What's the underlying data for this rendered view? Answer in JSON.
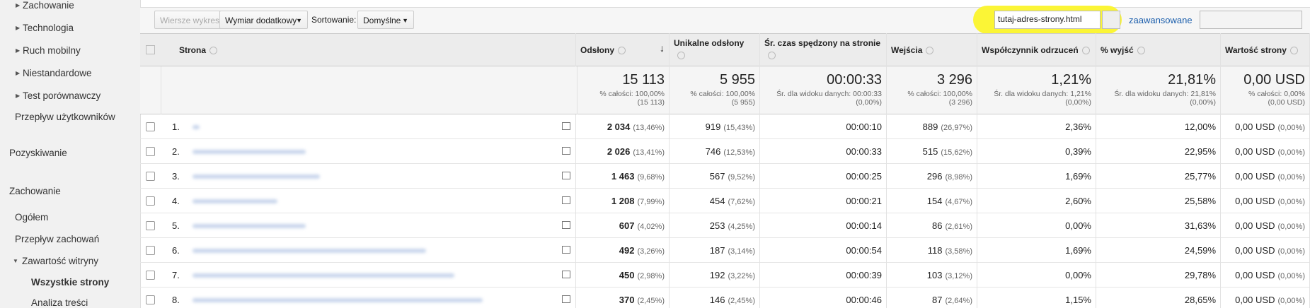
{
  "sidebar": [
    "Zachowanie",
    "Technologia",
    "Ruch mobilny",
    "Niestandardowe",
    "Test porównawczy",
    "Przepływ użytkowników",
    "Pozyskiwanie",
    "Zachowanie",
    "Ogółem",
    "Przepływ zachowań",
    "Zawartość witryny",
    "Wszystkie strony",
    "Analiza treści"
  ],
  "toolbar": {
    "chart_rows": "Wiersze wykresu",
    "secondary_dimension": "Wymiar dodatkowy",
    "sort_label": "Sortowanie:",
    "sort_value": "Domyślne",
    "search": "tutaj-adres-strony.html",
    "advanced": "zaawansowane"
  },
  "table": {
    "columns": [
      "Strona",
      "Odsłony",
      "Unikalne odsłony",
      "Śr. czas spędzony na stronie",
      "Wejścia",
      "Współczynnik odrzuceń",
      "% wyjść",
      "Wartość strony"
    ],
    "totals": [
      {
        "value": "15 113",
        "sub": [
          "% całości: 100,00%",
          "(15 113)"
        ]
      },
      {
        "value": "5 955",
        "sub": [
          "% całości: 100,00%",
          "(5 955)"
        ]
      },
      {
        "value": "00:00:33",
        "sub": [
          "Śr. dla widoku danych: 00:00:33",
          "(0,00%)"
        ]
      },
      {
        "value": "3 296",
        "sub": [
          "% całości: 100,00%",
          "(3 296)"
        ]
      },
      {
        "value": "1,21%",
        "sub": [
          "Śr. dla widoku danych: 1,21%",
          "(0,00%)"
        ]
      },
      {
        "value": "21,81%",
        "sub": [
          "Śr. dla widoku danych: 21,81%",
          "(0,00%)"
        ]
      },
      {
        "value": "0,00 USD",
        "sub": [
          "% całości: 0,00%",
          "(0,00 USD)"
        ]
      }
    ],
    "rows": [
      {
        "num": "1.",
        "cells": [
          [
            "2 034",
            "(13,46%)"
          ],
          [
            "919",
            "(15,43%)"
          ],
          [
            "00:00:10"
          ],
          [
            "889",
            "(26,97%)"
          ],
          [
            "2,36%"
          ],
          [
            "12,00%"
          ],
          [
            "0,00 USD",
            "(0,00%)"
          ]
        ]
      },
      {
        "num": "2.",
        "cells": [
          [
            "2 026",
            "(13,41%)"
          ],
          [
            "746",
            "(12,53%)"
          ],
          [
            "00:00:33"
          ],
          [
            "515",
            "(15,62%)"
          ],
          [
            "0,39%"
          ],
          [
            "22,95%"
          ],
          [
            "0,00 USD",
            "(0,00%)"
          ]
        ]
      },
      {
        "num": "3.",
        "cells": [
          [
            "1 463",
            "(9,68%)"
          ],
          [
            "567",
            "(9,52%)"
          ],
          [
            "00:00:25"
          ],
          [
            "296",
            "(8,98%)"
          ],
          [
            "1,69%"
          ],
          [
            "25,77%"
          ],
          [
            "0,00 USD",
            "(0,00%)"
          ]
        ]
      },
      {
        "num": "4.",
        "cells": [
          [
            "1 208",
            "(7,99%)"
          ],
          [
            "454",
            "(7,62%)"
          ],
          [
            "00:00:21"
          ],
          [
            "154",
            "(4,67%)"
          ],
          [
            "2,60%"
          ],
          [
            "25,58%"
          ],
          [
            "0,00 USD",
            "(0,00%)"
          ]
        ]
      },
      {
        "num": "5.",
        "cells": [
          [
            "607",
            "(4,02%)"
          ],
          [
            "253",
            "(4,25%)"
          ],
          [
            "00:00:14"
          ],
          [
            "86",
            "(2,61%)"
          ],
          [
            "0,00%"
          ],
          [
            "31,63%"
          ],
          [
            "0,00 USD",
            "(0,00%)"
          ]
        ]
      },
      {
        "num": "6.",
        "cells": [
          [
            "492",
            "(3,26%)"
          ],
          [
            "187",
            "(3,14%)"
          ],
          [
            "00:00:54"
          ],
          [
            "118",
            "(3,58%)"
          ],
          [
            "1,69%"
          ],
          [
            "24,59%"
          ],
          [
            "0,00 USD",
            "(0,00%)"
          ]
        ]
      },
      {
        "num": "7.",
        "cells": [
          [
            "450",
            "(2,98%)"
          ],
          [
            "192",
            "(3,22%)"
          ],
          [
            "00:00:39"
          ],
          [
            "103",
            "(3,12%)"
          ],
          [
            "0,00%"
          ],
          [
            "29,78%"
          ],
          [
            "0,00 USD",
            "(0,00%)"
          ]
        ]
      },
      {
        "num": "8.",
        "cells": [
          [
            "370",
            "(2,45%)"
          ],
          [
            "146",
            "(2,45%)"
          ],
          [
            "00:00:46"
          ],
          [
            "87",
            "(2,64%)"
          ],
          [
            "1,15%"
          ],
          [
            "28,65%"
          ],
          [
            "0,00 USD",
            "(0,00%)"
          ]
        ]
      }
    ]
  }
}
